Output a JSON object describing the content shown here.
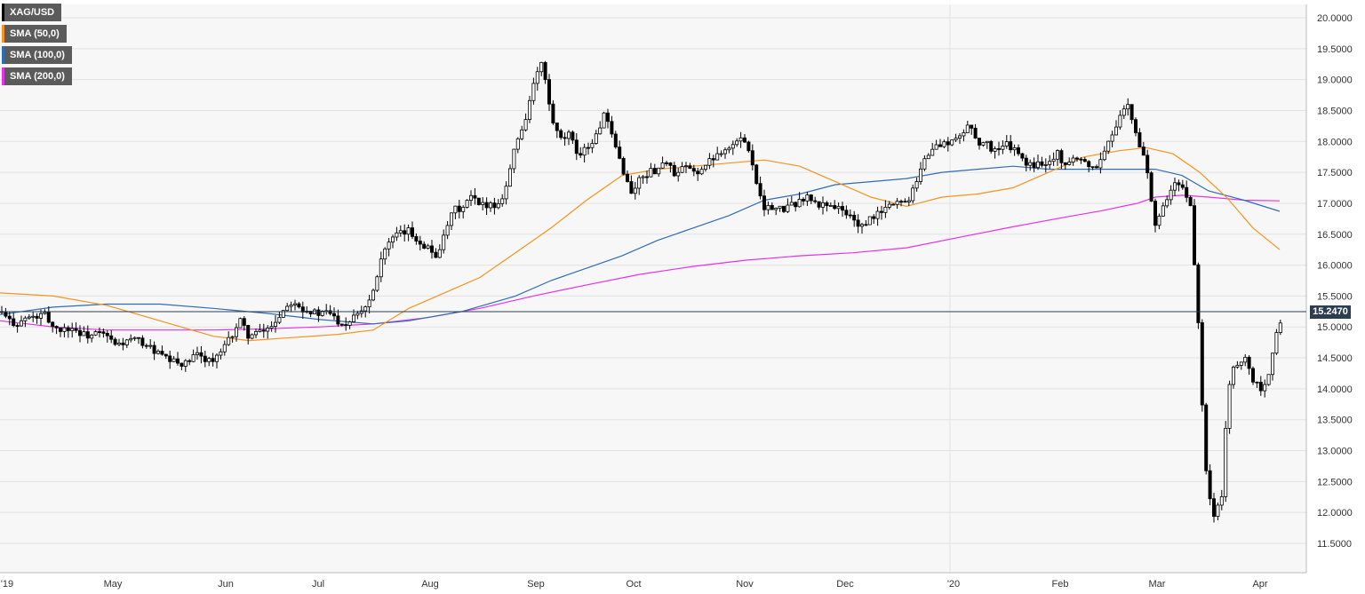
{
  "chart_data": {
    "type": "candlestick",
    "legend_placement": "top-left",
    "grid": true,
    "ylim": [
      11.5,
      20.0
    ],
    "y_ticks": [
      "20.0000",
      "19.5000",
      "19.0000",
      "18.5000",
      "18.0000",
      "17.5000",
      "17.0000",
      "16.5000",
      "16.0000",
      "15.5000",
      "15.0000",
      "14.5000",
      "14.0000",
      "13.5000",
      "13.0000",
      "12.5000",
      "12.0000",
      "11.5000"
    ],
    "x_ticks": [
      "'19",
      "May",
      "Jun",
      "Jul",
      "Aug",
      "Sep",
      "Oct",
      "Nov",
      "Dec",
      "'20",
      "Feb",
      "Mar",
      "Apr"
    ],
    "last_price": "15.2470",
    "series": [
      {
        "name": "XAG/USD",
        "color": "#000000"
      },
      {
        "name": "SMA (50,0)",
        "color": "#f7931e"
      },
      {
        "name": "SMA (100,0)",
        "color": "#2f6db5"
      },
      {
        "name": "SMA (200,0)",
        "color": "#e631e6"
      }
    ],
    "price_path": [
      [
        0,
        15.25
      ],
      [
        10,
        15.1
      ],
      [
        20,
        15.05
      ],
      [
        30,
        15.15
      ],
      [
        40,
        15.15
      ],
      [
        50,
        15.2
      ],
      [
        60,
        15.0
      ],
      [
        70,
        14.95
      ],
      [
        80,
        15.0
      ],
      [
        90,
        14.9
      ],
      [
        100,
        14.85
      ],
      [
        110,
        14.9
      ],
      [
        120,
        14.85
      ],
      [
        130,
        14.7
      ],
      [
        140,
        14.75
      ],
      [
        150,
        14.8
      ],
      [
        160,
        14.75
      ],
      [
        170,
        14.65
      ],
      [
        180,
        14.55
      ],
      [
        190,
        14.45
      ],
      [
        200,
        14.42
      ],
      [
        210,
        14.4
      ],
      [
        220,
        14.55
      ],
      [
        230,
        14.5
      ],
      [
        240,
        14.45
      ],
      [
        250,
        14.6
      ],
      [
        260,
        14.85
      ],
      [
        270,
        15.1
      ],
      [
        280,
        14.85
      ],
      [
        290,
        14.9
      ],
      [
        300,
        14.95
      ],
      [
        310,
        15.1
      ],
      [
        320,
        15.3
      ],
      [
        330,
        15.45
      ],
      [
        340,
        15.3
      ],
      [
        350,
        15.25
      ],
      [
        360,
        15.2
      ],
      [
        370,
        15.25
      ],
      [
        380,
        15.1
      ],
      [
        390,
        15.05
      ],
      [
        400,
        15.25
      ],
      [
        410,
        15.3
      ],
      [
        420,
        15.6
      ],
      [
        430,
        16.2
      ],
      [
        440,
        16.4
      ],
      [
        450,
        16.5
      ],
      [
        460,
        16.55
      ],
      [
        470,
        16.4
      ],
      [
        480,
        16.3
      ],
      [
        490,
        16.15
      ],
      [
        500,
        16.45
      ],
      [
        510,
        16.9
      ],
      [
        520,
        16.9
      ],
      [
        530,
        17.1
      ],
      [
        540,
        16.95
      ],
      [
        550,
        17.0
      ],
      [
        560,
        16.95
      ],
      [
        570,
        17.3
      ],
      [
        580,
        17.95
      ],
      [
        590,
        18.3
      ],
      [
        600,
        18.9
      ],
      [
        610,
        19.3
      ],
      [
        620,
        18.4
      ],
      [
        630,
        18.0
      ],
      [
        640,
        18.1
      ],
      [
        650,
        17.8
      ],
      [
        660,
        17.9
      ],
      [
        670,
        18.05
      ],
      [
        680,
        18.45
      ],
      [
        690,
        18.0
      ],
      [
        700,
        17.6
      ],
      [
        710,
        17.15
      ],
      [
        720,
        17.4
      ],
      [
        730,
        17.5
      ],
      [
        740,
        17.55
      ],
      [
        750,
        17.7
      ],
      [
        760,
        17.4
      ],
      [
        770,
        17.6
      ],
      [
        780,
        17.5
      ],
      [
        790,
        17.55
      ],
      [
        800,
        17.7
      ],
      [
        810,
        17.85
      ],
      [
        820,
        17.9
      ],
      [
        830,
        18.0
      ],
      [
        840,
        18.05
      ],
      [
        850,
        17.4
      ],
      [
        860,
        16.95
      ],
      [
        870,
        16.9
      ],
      [
        880,
        16.9
      ],
      [
        890,
        16.95
      ],
      [
        900,
        17.05
      ],
      [
        910,
        17.1
      ],
      [
        920,
        16.95
      ],
      [
        930,
        17.0
      ],
      [
        940,
        16.95
      ],
      [
        950,
        16.85
      ],
      [
        960,
        16.75
      ],
      [
        970,
        16.6
      ],
      [
        980,
        16.75
      ],
      [
        990,
        16.85
      ],
      [
        1000,
        16.95
      ],
      [
        1010,
        17.05
      ],
      [
        1020,
        17.0
      ],
      [
        1030,
        17.35
      ],
      [
        1040,
        17.7
      ],
      [
        1050,
        17.9
      ],
      [
        1060,
        17.95
      ],
      [
        1070,
        18.0
      ],
      [
        1080,
        18.05
      ],
      [
        1090,
        18.3
      ],
      [
        1100,
        18.0
      ],
      [
        1110,
        17.95
      ],
      [
        1120,
        17.85
      ],
      [
        1130,
        17.95
      ],
      [
        1140,
        17.9
      ],
      [
        1150,
        17.7
      ],
      [
        1160,
        17.6
      ],
      [
        1170,
        17.65
      ],
      [
        1180,
        17.7
      ],
      [
        1190,
        17.8
      ],
      [
        1200,
        17.6
      ],
      [
        1210,
        17.75
      ],
      [
        1220,
        17.7
      ],
      [
        1230,
        17.55
      ],
      [
        1240,
        17.75
      ],
      [
        1250,
        18.05
      ],
      [
        1260,
        18.45
      ],
      [
        1270,
        18.55
      ],
      [
        1280,
        18.0
      ],
      [
        1290,
        17.65
      ],
      [
        1300,
        16.6
      ],
      [
        1310,
        16.95
      ],
      [
        1320,
        17.3
      ],
      [
        1330,
        17.25
      ],
      [
        1340,
        16.95
      ],
      [
        1345,
        15.8
      ],
      [
        1350,
        14.8
      ],
      [
        1355,
        13.0
      ],
      [
        1360,
        12.3
      ],
      [
        1365,
        11.95
      ],
      [
        1370,
        12.1
      ],
      [
        1375,
        12.3
      ],
      [
        1380,
        13.55
      ],
      [
        1385,
        14.2
      ],
      [
        1390,
        14.4
      ],
      [
        1400,
        14.5
      ],
      [
        1410,
        14.15
      ],
      [
        1420,
        14.0
      ],
      [
        1430,
        14.35
      ],
      [
        1435,
        14.8
      ],
      [
        1440,
        15.05
      ],
      [
        1443,
        15.247
      ]
    ],
    "sma50_path": [
      [
        0,
        15.55
      ],
      [
        60,
        15.5
      ],
      [
        120,
        15.35
      ],
      [
        180,
        15.1
      ],
      [
        240,
        14.85
      ],
      [
        280,
        14.78
      ],
      [
        320,
        14.82
      ],
      [
        380,
        14.88
      ],
      [
        420,
        14.95
      ],
      [
        460,
        15.3
      ],
      [
        500,
        15.55
      ],
      [
        540,
        15.8
      ],
      [
        580,
        16.2
      ],
      [
        620,
        16.6
      ],
      [
        660,
        17.05
      ],
      [
        700,
        17.45
      ],
      [
        740,
        17.55
      ],
      [
        780,
        17.6
      ],
      [
        820,
        17.65
      ],
      [
        860,
        17.7
      ],
      [
        900,
        17.6
      ],
      [
        940,
        17.35
      ],
      [
        980,
        17.1
      ],
      [
        1020,
        16.95
      ],
      [
        1060,
        17.1
      ],
      [
        1100,
        17.15
      ],
      [
        1140,
        17.25
      ],
      [
        1180,
        17.5
      ],
      [
        1220,
        17.75
      ],
      [
        1260,
        17.85
      ],
      [
        1290,
        17.9
      ],
      [
        1320,
        17.8
      ],
      [
        1350,
        17.5
      ],
      [
        1380,
        17.1
      ],
      [
        1410,
        16.6
      ],
      [
        1440,
        16.25
      ]
    ],
    "sma100_path": [
      [
        0,
        15.2
      ],
      [
        60,
        15.32
      ],
      [
        120,
        15.37
      ],
      [
        180,
        15.37
      ],
      [
        240,
        15.3
      ],
      [
        300,
        15.22
      ],
      [
        360,
        15.12
      ],
      [
        420,
        15.05
      ],
      [
        460,
        15.1
      ],
      [
        520,
        15.25
      ],
      [
        580,
        15.5
      ],
      [
        620,
        15.75
      ],
      [
        660,
        15.95
      ],
      [
        700,
        16.15
      ],
      [
        740,
        16.4
      ],
      [
        780,
        16.6
      ],
      [
        820,
        16.8
      ],
      [
        860,
        17.05
      ],
      [
        900,
        17.15
      ],
      [
        940,
        17.3
      ],
      [
        980,
        17.35
      ],
      [
        1020,
        17.4
      ],
      [
        1060,
        17.5
      ],
      [
        1100,
        17.55
      ],
      [
        1140,
        17.6
      ],
      [
        1180,
        17.55
      ],
      [
        1220,
        17.55
      ],
      [
        1260,
        17.55
      ],
      [
        1300,
        17.55
      ],
      [
        1330,
        17.45
      ],
      [
        1360,
        17.2
      ],
      [
        1400,
        17.05
      ],
      [
        1440,
        16.87
      ]
    ],
    "sma200_path": [
      [
        0,
        15.1
      ],
      [
        60,
        15.0
      ],
      [
        120,
        14.95
      ],
      [
        180,
        14.95
      ],
      [
        240,
        14.95
      ],
      [
        300,
        14.97
      ],
      [
        360,
        15.0
      ],
      [
        420,
        15.05
      ],
      [
        480,
        15.15
      ],
      [
        540,
        15.3
      ],
      [
        600,
        15.5
      ],
      [
        660,
        15.68
      ],
      [
        720,
        15.85
      ],
      [
        780,
        15.98
      ],
      [
        840,
        16.08
      ],
      [
        900,
        16.15
      ],
      [
        960,
        16.2
      ],
      [
        1020,
        16.28
      ],
      [
        1080,
        16.45
      ],
      [
        1140,
        16.62
      ],
      [
        1200,
        16.78
      ],
      [
        1240,
        16.88
      ],
      [
        1280,
        17.0
      ],
      [
        1300,
        17.1
      ],
      [
        1330,
        17.13
      ],
      [
        1360,
        17.1
      ],
      [
        1400,
        17.05
      ],
      [
        1440,
        17.04
      ]
    ]
  },
  "legend": {
    "items": [
      "XAG/USD",
      "SMA (50,0)",
      "SMA (100,0)",
      "SMA (200,0)"
    ]
  }
}
